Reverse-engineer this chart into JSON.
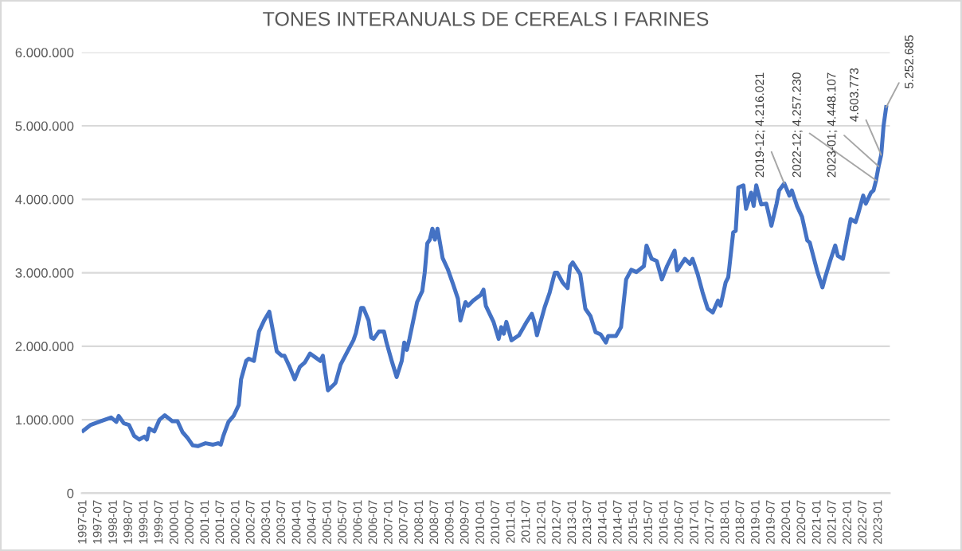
{
  "chart_data": {
    "type": "line",
    "title": "TONES INTERANUALS DE CEREALS I FARINES",
    "x": [
      "1997-01",
      "1997-04",
      "1997-08",
      "1997-12",
      "1998-02",
      "1998-03",
      "1998-05",
      "1998-07",
      "1998-09",
      "1998-11",
      "1999-01",
      "1999-02",
      "1999-03",
      "1999-05",
      "1999-07",
      "1999-09",
      "1999-12",
      "2000-02",
      "2000-04",
      "2000-06",
      "2000-08",
      "2000-10",
      "2001-01",
      "2001-04",
      "2001-06",
      "2001-07",
      "2001-08",
      "2001-10",
      "2001-12",
      "2002-02",
      "2002-03",
      "2002-05",
      "2002-06",
      "2002-08",
      "2002-10",
      "2002-12",
      "2003-02",
      "2003-03",
      "2003-05",
      "2003-07",
      "2003-08",
      "2003-10",
      "2003-12",
      "2004-02",
      "2004-04",
      "2004-06",
      "2004-08",
      "2004-10",
      "2004-11",
      "2005-01",
      "2005-04",
      "2005-06",
      "2005-09",
      "2005-11",
      "2005-12",
      "2006-02",
      "2006-03",
      "2006-05",
      "2006-06",
      "2006-07",
      "2006-09",
      "2006-11",
      "2006-12",
      "2007-02",
      "2007-04",
      "2007-06",
      "2007-07",
      "2007-08",
      "2007-09",
      "2007-12",
      "2008-02",
      "2008-03",
      "2008-04",
      "2008-05",
      "2008-06",
      "2008-07",
      "2008-08",
      "2008-10",
      "2008-12",
      "2009-02",
      "2009-04",
      "2009-05",
      "2009-07",
      "2009-08",
      "2009-10",
      "2010-01",
      "2010-02",
      "2010-03",
      "2010-06",
      "2010-08",
      "2010-09",
      "2010-10",
      "2010-11",
      "2011-01",
      "2011-04",
      "2011-07",
      "2011-09",
      "2011-10",
      "2011-11",
      "2012-02",
      "2012-04",
      "2012-06",
      "2012-07",
      "2012-09",
      "2012-11",
      "2012-12",
      "2013-01",
      "2013-04",
      "2013-06",
      "2013-08",
      "2013-10",
      "2013-12",
      "2014-02",
      "2014-03",
      "2014-06",
      "2014-08",
      "2014-10",
      "2014-12",
      "2015-02",
      "2015-05",
      "2015-06",
      "2015-08",
      "2015-10",
      "2015-12",
      "2016-02",
      "2016-05",
      "2016-06",
      "2016-09",
      "2016-11",
      "2016-12",
      "2017-02",
      "2017-04",
      "2017-06",
      "2017-08",
      "2017-10",
      "2017-11",
      "2018-01",
      "2018-02",
      "2018-04",
      "2018-05",
      "2018-06",
      "2018-08",
      "2018-09",
      "2018-11",
      "2018-12",
      "2019-01",
      "2019-03",
      "2019-05",
      "2019-07",
      "2019-09",
      "2019-10",
      "2019-12",
      "2020-02",
      "2020-03",
      "2020-05",
      "2020-07",
      "2020-09",
      "2020-10",
      "2021-01",
      "2021-03",
      "2021-04",
      "2021-06",
      "2021-08",
      "2021-09",
      "2021-11",
      "2022-01",
      "2022-02",
      "2022-04",
      "2022-05",
      "2022-07",
      "2022-08",
      "2022-10",
      "2022-11",
      "2022-12",
      "2023-01",
      "2023-02",
      "2023-03",
      "2023-04"
    ],
    "series": [
      {
        "color": "#4472c4",
        "values": [
          850000,
          930000,
          980000,
          1030000,
          970000,
          1050000,
          950000,
          930000,
          780000,
          730000,
          770000,
          730000,
          880000,
          840000,
          1000000,
          1060000,
          980000,
          980000,
          830000,
          750000,
          650000,
          640000,
          680000,
          660000,
          680000,
          660000,
          780000,
          970000,
          1050000,
          1200000,
          1550000,
          1800000,
          1830000,
          1800000,
          2200000,
          2350000,
          2470000,
          2300000,
          1930000,
          1870000,
          1870000,
          1720000,
          1550000,
          1720000,
          1780000,
          1900000,
          1850000,
          1800000,
          1870000,
          1400000,
          1500000,
          1750000,
          1950000,
          2080000,
          2180000,
          2520000,
          2520000,
          2350000,
          2120000,
          2100000,
          2200000,
          2200000,
          2050000,
          1800000,
          1580000,
          1800000,
          2050000,
          1950000,
          2100000,
          2600000,
          2750000,
          3000000,
          3400000,
          3450000,
          3600000,
          3450000,
          3600000,
          3200000,
          3050000,
          2850000,
          2650000,
          2350000,
          2600000,
          2550000,
          2620000,
          2700000,
          2770000,
          2550000,
          2330000,
          2100000,
          2260000,
          2170000,
          2330000,
          2080000,
          2150000,
          2330000,
          2440000,
          2330000,
          2150000,
          2530000,
          2730000,
          3000000,
          3000000,
          2870000,
          2790000,
          3090000,
          3140000,
          2980000,
          2510000,
          2410000,
          2190000,
          2160000,
          2050000,
          2140000,
          2140000,
          2260000,
          2910000,
          3040000,
          3010000,
          3090000,
          3370000,
          3190000,
          3160000,
          2910000,
          3090000,
          3300000,
          3030000,
          3190000,
          3120000,
          3190000,
          2980000,
          2730000,
          2510000,
          2460000,
          2620000,
          2550000,
          2870000,
          2940000,
          3550000,
          3570000,
          4160000,
          4190000,
          3870000,
          4090000,
          3910000,
          4190000,
          3930000,
          3940000,
          3640000,
          3940000,
          4120000,
          4216021,
          4050000,
          4120000,
          3910000,
          3760000,
          3440000,
          3410000,
          3010000,
          2800000,
          2930000,
          3160000,
          3370000,
          3230000,
          3190000,
          3550000,
          3730000,
          3690000,
          3800000,
          4050000,
          3940000,
          4090000,
          4120000,
          4257230,
          4448107,
          4603773,
          5000000,
          5252685
        ]
      }
    ],
    "xlim": [
      "1996-12-15",
      "2023-05-15"
    ],
    "xticks": [
      "1997-01",
      "1997-07",
      "1998-01",
      "1998-07",
      "1999-01",
      "1999-07",
      "2000-01",
      "2000-07",
      "2001-01",
      "2001-07",
      "2002-01",
      "2002-07",
      "2003-01",
      "2003-07",
      "2004-01",
      "2004-07",
      "2005-01",
      "2005-07",
      "2006-01",
      "2006-07",
      "2007-01",
      "2007-07",
      "2008-01",
      "2008-07",
      "2009-01",
      "2009-07",
      "2010-01",
      "2010-07",
      "2011-01",
      "2011-07",
      "2012-01",
      "2012-07",
      "2013-01",
      "2013-07",
      "2014-01",
      "2014-07",
      "2015-01",
      "2015-07",
      "2016-01",
      "2016-07",
      "2017-01",
      "2017-07",
      "2018-01",
      "2018-07",
      "2019-01",
      "2019-07",
      "2020-01",
      "2020-07",
      "2021-01",
      "2021-07",
      "2022-01",
      "2022-07",
      "2023-01"
    ],
    "ylim": [
      0,
      6000000
    ],
    "yticks": [
      0,
      {
        "value": 1000000,
        "label": "1.000.000"
      },
      {
        "value": 2000000,
        "label": "2.000.000"
      },
      {
        "value": 3000000,
        "label": "3.000.000"
      },
      {
        "value": 4000000,
        "label": "4.000.000"
      },
      {
        "value": 5000000,
        "label": "5.000.000"
      },
      {
        "value": 6000000,
        "label": "6.000.000"
      }
    ],
    "grid": "y",
    "marker": "none",
    "line_style": "solid",
    "legend": false,
    "annotations": [
      {
        "text": "2019-12; 4.216.021",
        "x": "2019-12",
        "y": 4216021
      },
      {
        "text": "2022-12; 4.257.230",
        "x": "2022-12",
        "y": 4257230
      },
      {
        "text": "2023-01; 4.448.107",
        "x": "2023-01",
        "y": 4448107
      },
      {
        "text": "4.603.773",
        "x": "2023-02",
        "y": 4603773
      },
      {
        "text": "5.252.685",
        "x": "2023-04",
        "y": 5252685
      }
    ]
  }
}
